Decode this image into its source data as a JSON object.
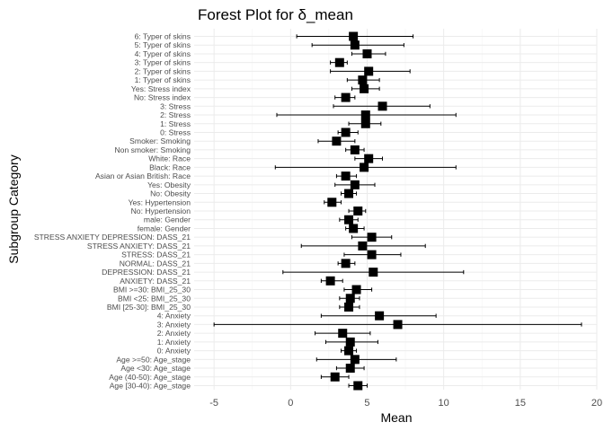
{
  "chart_data": {
    "type": "forest",
    "title": "Forest Plot for δ_mean",
    "xlabel": "Mean",
    "ylabel": "Subgroup Category",
    "xlim": [
      -6.3,
      20
    ],
    "x_ticks": [
      -5,
      0,
      5,
      10,
      15,
      20
    ],
    "x_tick_labels": [
      "-5",
      "0",
      "5",
      "10",
      "15",
      "20"
    ],
    "grid": true,
    "theme": "minimal",
    "rows": [
      {
        "label": "6: Typer of skins",
        "mean": 4.1,
        "lo": 0.4,
        "hi": 8.0
      },
      {
        "label": "5: Typer of skins",
        "mean": 4.2,
        "lo": 1.4,
        "hi": 7.4
      },
      {
        "label": "4: Typer of skins",
        "mean": 5.0,
        "lo": 4.0,
        "hi": 6.2
      },
      {
        "label": "3: Typer of skins",
        "mean": 3.2,
        "lo": 2.6,
        "hi": 3.7
      },
      {
        "label": "2: Typer of skins",
        "mean": 5.1,
        "lo": 2.6,
        "hi": 7.8
      },
      {
        "label": "1: Typer of skins",
        "mean": 4.7,
        "lo": 3.7,
        "hi": 5.8
      },
      {
        "label": "Yes: Stress index",
        "mean": 4.8,
        "lo": 4.0,
        "hi": 5.8
      },
      {
        "label": "No: Stress index",
        "mean": 3.6,
        "lo": 2.9,
        "hi": 4.2
      },
      {
        "label": "3: Stress",
        "mean": 6.0,
        "lo": 2.8,
        "hi": 9.1
      },
      {
        "label": "2: Stress",
        "mean": 4.9,
        "lo": -0.9,
        "hi": 10.8
      },
      {
        "label": "1: Stress",
        "mean": 4.9,
        "lo": 3.8,
        "hi": 5.9
      },
      {
        "label": "0: Stress",
        "mean": 3.6,
        "lo": 3.1,
        "hi": 4.4
      },
      {
        "label": "Smoker: Smoking",
        "mean": 3.0,
        "lo": 1.8,
        "hi": 4.2
      },
      {
        "label": "Non smoker: Smoking",
        "mean": 4.2,
        "lo": 3.6,
        "hi": 4.8
      },
      {
        "label": "White: Race",
        "mean": 5.1,
        "lo": 4.2,
        "hi": 6.0
      },
      {
        "label": "Black: Race",
        "mean": 4.8,
        "lo": -1.0,
        "hi": 10.8
      },
      {
        "label": "Asian or Asian British: Race",
        "mean": 3.6,
        "lo": 3.0,
        "hi": 4.3
      },
      {
        "label": "Yes: Obesity",
        "mean": 4.2,
        "lo": 2.9,
        "hi": 5.5
      },
      {
        "label": "No: Obesity",
        "mean": 3.8,
        "lo": 3.3,
        "hi": 4.3
      },
      {
        "label": "Yes: Hypertension",
        "mean": 2.7,
        "lo": 2.2,
        "hi": 3.3
      },
      {
        "label": "No: Hypertension",
        "mean": 4.4,
        "lo": 3.8,
        "hi": 4.9
      },
      {
        "label": "male: Gender",
        "mean": 3.8,
        "lo": 3.2,
        "hi": 4.4
      },
      {
        "label": "female: Gender",
        "mean": 4.1,
        "lo": 3.6,
        "hi": 4.8
      },
      {
        "label": "STRESS ANXIETY DEPRESSION: DASS_21",
        "mean": 5.3,
        "lo": 4.0,
        "hi": 6.6
      },
      {
        "label": "STRESS ANXIETY: DASS_21",
        "mean": 4.7,
        "lo": 0.7,
        "hi": 8.8
      },
      {
        "label": "STRESS: DASS_21",
        "mean": 5.3,
        "lo": 3.5,
        "hi": 7.2
      },
      {
        "label": "NORMAL: DASS_21",
        "mean": 3.6,
        "lo": 3.1,
        "hi": 4.2
      },
      {
        "label": "DEPRESSION: DASS_21",
        "mean": 5.4,
        "lo": -0.5,
        "hi": 11.3
      },
      {
        "label": "ANXIETY: DASS_21",
        "mean": 2.6,
        "lo": 2.0,
        "hi": 3.4
      },
      {
        "label": "BMI >=30: BMI_25_30",
        "mean": 4.3,
        "lo": 3.5,
        "hi": 5.3
      },
      {
        "label": "BMI <25: BMI_25_30",
        "mean": 3.9,
        "lo": 3.2,
        "hi": 4.5
      },
      {
        "label": "BMI [25-30]: BMI_25_30",
        "mean": 3.8,
        "lo": 3.2,
        "hi": 4.5
      },
      {
        "label": "4: Anxiety",
        "mean": 5.8,
        "lo": 2.0,
        "hi": 9.5
      },
      {
        "label": "3: Anxiety",
        "mean": 7.0,
        "lo": -5.0,
        "hi": 19.0
      },
      {
        "label": "2: Anxiety",
        "mean": 3.4,
        "lo": 1.6,
        "hi": 5.2
      },
      {
        "label": "1: Anxiety",
        "mean": 3.9,
        "lo": 2.3,
        "hi": 5.7
      },
      {
        "label": "0: Anxiety",
        "mean": 3.8,
        "lo": 3.3,
        "hi": 4.3
      },
      {
        "label": "Age >=50: Age_stage",
        "mean": 4.2,
        "lo": 1.7,
        "hi": 6.9
      },
      {
        "label": "Age <30: Age_stage",
        "mean": 3.9,
        "lo": 3.0,
        "hi": 4.8
      },
      {
        "label": "Age (40-50): Age_stage",
        "mean": 2.9,
        "lo": 2.0,
        "hi": 3.8
      },
      {
        "label": "Age [30-40): Age_stage",
        "mean": 4.4,
        "lo": 3.8,
        "hi": 5.0
      }
    ]
  }
}
